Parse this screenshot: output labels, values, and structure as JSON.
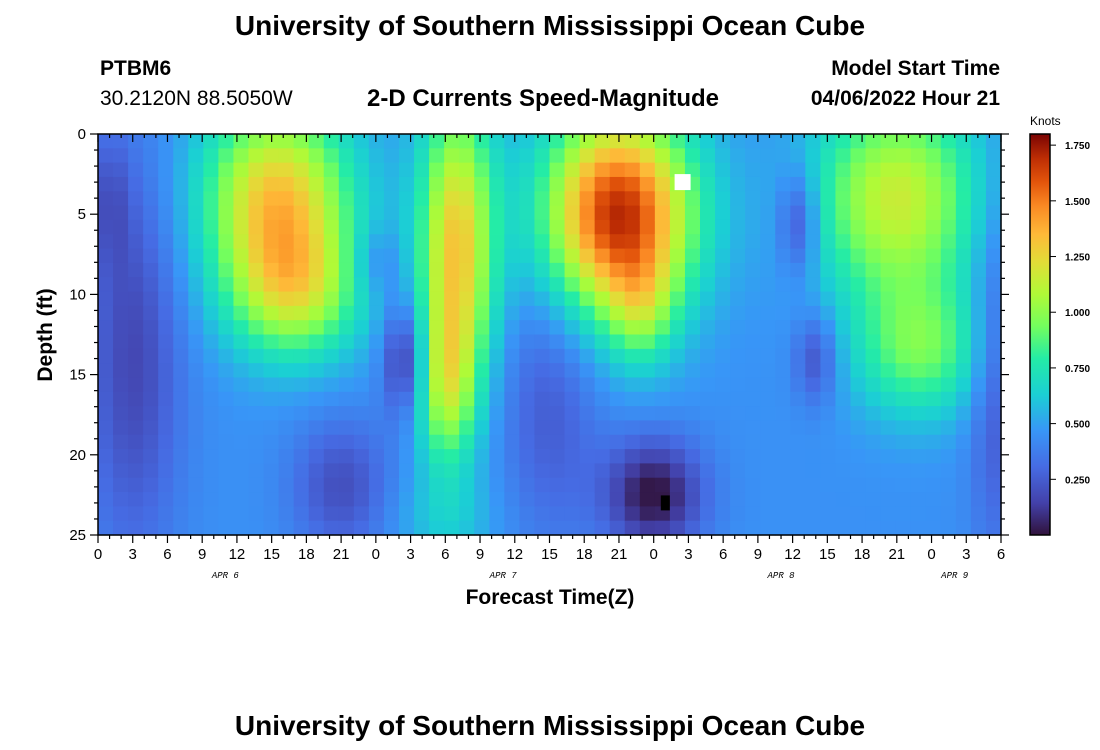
{
  "header": {
    "title": "University of Southern Mississippi Ocean Cube",
    "station": "PTBM6",
    "coords": "30.2120N  88.5050W",
    "product": "2-D Currents Speed-Magnitude",
    "model_label": "Model Start Time",
    "model_time": "04/06/2022 Hour 21"
  },
  "footer": {
    "title": "University of Southern Mississippi Ocean Cube"
  },
  "chart_data": {
    "type": "heatmap",
    "title": "2-D Currents Speed-Magnitude",
    "xlabel": "Forecast Time(Z)",
    "ylabel": "Depth (ft)",
    "x_range_hours": [
      0,
      78
    ],
    "y_range_ft": [
      0,
      25
    ],
    "x_tick_labels": [
      "0",
      "3",
      "6",
      "9",
      "12",
      "15",
      "18",
      "21",
      "0",
      "3",
      "6",
      "9",
      "12",
      "15",
      "18",
      "21",
      "0",
      "3",
      "6",
      "9",
      "12",
      "15",
      "18",
      "21",
      "0",
      "3",
      "6"
    ],
    "y_tick_labels": [
      "0",
      "5",
      "10",
      "15",
      "20",
      "25"
    ],
    "date_labels": [
      {
        "label": "APR 6",
        "hour": 11
      },
      {
        "label": "APR 7",
        "hour": 35
      },
      {
        "label": "APR 8",
        "hour": 59
      },
      {
        "label": "APR 9",
        "hour": 74
      }
    ],
    "colorbar": {
      "unit": "Knots",
      "range": [
        0.0,
        1.8
      ],
      "tick_labels": [
        "1.750",
        "1.500",
        "1.250",
        "1.000",
        "0.750",
        "0.500",
        "0.250"
      ],
      "tick_values": [
        1.75,
        1.5,
        1.25,
        1.0,
        0.75,
        0.5,
        0.25
      ]
    },
    "speed_features_knots": [
      {
        "hour": 15,
        "depth": 4,
        "speed": 1.3
      },
      {
        "hour": 27,
        "depth": 14,
        "speed": 0.05
      },
      {
        "hour": 31,
        "depth": 8,
        "speed": 1.25
      },
      {
        "hour": 45,
        "depth": 5,
        "speed": 1.75
      },
      {
        "hour": 48,
        "depth": 22,
        "speed": 0.02
      },
      {
        "hour": 60,
        "depth": 6,
        "speed": 0.2
      },
      {
        "hour": 62,
        "depth": 14,
        "speed": 0.25
      },
      {
        "hour": 69,
        "depth": 4,
        "speed": 1.2
      },
      {
        "hour": 71,
        "depth": 14,
        "speed": 1.0
      }
    ],
    "markers": [
      {
        "hour": 50.5,
        "depth": 3.0,
        "color": "#ffffff"
      },
      {
        "hour": 49.0,
        "depth": 23.0,
        "color": "#000000"
      }
    ]
  }
}
